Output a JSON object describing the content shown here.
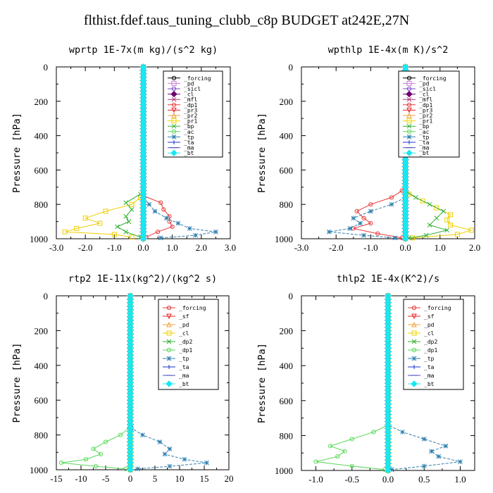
{
  "title": "flthist.fdef.taus_tuning_clubb_c8p  BUDGET at242E,27N",
  "ylabel": "Pressure [hPa]",
  "chart_data": [
    {
      "id": "wprtp",
      "type": "line",
      "title": "wprtp  1E-7x(m kg)/(s^2 kg)",
      "ylabel": "Pressure [hPa]",
      "xlim": [
        -3.0,
        3.0
      ],
      "ylim": [
        1000,
        0
      ],
      "xticks": [
        "-3.0",
        "-2.0",
        "-1.0",
        "0.0",
        "1.0",
        "2.0",
        "3.0"
      ],
      "yticks": [
        "0",
        "200",
        "400",
        "600",
        "800",
        "1000"
      ],
      "legend": "top-right",
      "series": [
        {
          "name": "_forcing",
          "color": "#000000",
          "marker": "o"
        },
        {
          "name": "_pd",
          "color": "#c878d8",
          "marker": "s"
        },
        {
          "name": "_sicl",
          "color": "#7848c8",
          "marker": "o"
        },
        {
          "name": "_cl",
          "color": "#700070",
          "marker": "d"
        },
        {
          "name": "_mfl",
          "color": "#a83878",
          "marker": "x"
        },
        {
          "name": "_dp1",
          "color": "#e83838",
          "marker": "o",
          "y": [
            750,
            790,
            830,
            870,
            900,
            930,
            960,
            990
          ],
          "x": [
            0.0,
            0.6,
            0.7,
            0.9,
            0.9,
            1.0,
            0.5,
            0.1
          ]
        },
        {
          "name": "_pr3",
          "color": "#e82020",
          "marker": "v"
        },
        {
          "name": "_pr2",
          "color": "#f0a040",
          "marker": "^"
        },
        {
          "name": "_pr1",
          "color": "#f0d000",
          "marker": "s",
          "y": [
            760,
            800,
            840,
            880,
            910,
            940,
            960,
            975,
            990
          ],
          "x": [
            -0.1,
            -0.4,
            -1.3,
            -2.0,
            -1.5,
            -2.3,
            -2.7,
            -1.0,
            -0.4
          ]
        },
        {
          "name": "_bp",
          "color": "#30b030",
          "marker": "x",
          "y": [
            740,
            790,
            830,
            870,
            900,
            930,
            960,
            990
          ],
          "x": [
            -0.1,
            -0.6,
            -0.4,
            -0.6,
            -0.5,
            -0.9,
            -0.6,
            -0.1
          ]
        },
        {
          "name": "_ac",
          "color": "#58d858",
          "marker": "o"
        },
        {
          "name": "_tp",
          "color": "#3080b0",
          "marker": "*",
          "y": [
            760,
            800,
            840,
            880,
            910,
            940,
            960,
            980,
            995
          ],
          "x": [
            0.0,
            0.2,
            0.4,
            0.8,
            1.2,
            1.6,
            2.5,
            1.8,
            0.6
          ]
        },
        {
          "name": "_ta",
          "color": "#1830d0",
          "marker": "+"
        },
        {
          "name": "_ma",
          "color": "#5050c0",
          "marker": "-"
        },
        {
          "name": "_bt",
          "color": "#18e8f0",
          "marker": "d"
        }
      ]
    },
    {
      "id": "wpthlp",
      "type": "line",
      "title": "wpthlp  1E-4x(m K)/s^2",
      "ylabel": "Pressure [hPa]",
      "xlim": [
        -3.0,
        2.0
      ],
      "ylim": [
        1000,
        0
      ],
      "xticks": [
        "-3.0",
        "-2.0",
        "-1.0",
        "0.0",
        "1.0",
        "2.0"
      ],
      "yticks": [
        "0",
        "200",
        "400",
        "600",
        "800",
        "1000"
      ],
      "legend": "top-right",
      "series": [
        {
          "name": "_forcing",
          "color": "#000000",
          "marker": "o"
        },
        {
          "name": "_pd",
          "color": "#c878d8",
          "marker": "s"
        },
        {
          "name": "_sicl",
          "color": "#7848c8",
          "marker": "o"
        },
        {
          "name": "_cl",
          "color": "#700070",
          "marker": "d"
        },
        {
          "name": "_mfl",
          "color": "#a83878",
          "marker": "x"
        },
        {
          "name": "_dp1",
          "color": "#e83838",
          "marker": "o",
          "y": [
            720,
            760,
            800,
            840,
            880,
            910,
            940,
            970,
            995
          ],
          "x": [
            -0.1,
            -0.4,
            -1.0,
            -1.4,
            -1.2,
            -1.0,
            -1.5,
            -0.8,
            -0.1
          ]
        },
        {
          "name": "_pr3",
          "color": "#e82020",
          "marker": "v"
        },
        {
          "name": "_pr2",
          "color": "#f0a040",
          "marker": "^"
        },
        {
          "name": "_pr1",
          "color": "#f0d000",
          "marker": "s",
          "y": [
            740,
            780,
            820,
            860,
            890,
            920,
            950,
            975,
            995
          ],
          "x": [
            0.1,
            0.5,
            0.9,
            1.3,
            1.2,
            1.3,
            1.9,
            1.5,
            0.2
          ]
        },
        {
          "name": "_bp",
          "color": "#30b030",
          "marker": "x",
          "y": [
            720,
            760,
            800,
            840,
            880,
            920,
            950,
            980,
            995
          ],
          "x": [
            0.0,
            0.3,
            0.7,
            1.1,
            0.9,
            0.7,
            1.2,
            0.6,
            0.1
          ]
        },
        {
          "name": "_ac",
          "color": "#58d858",
          "marker": "o"
        },
        {
          "name": "_tp",
          "color": "#3080b0",
          "marker": "*",
          "y": [
            760,
            800,
            840,
            880,
            910,
            940,
            960,
            980,
            995
          ],
          "x": [
            0.0,
            -0.4,
            -1.0,
            -1.5,
            -1.3,
            -1.6,
            -2.2,
            -1.2,
            -0.3
          ]
        },
        {
          "name": "_ta",
          "color": "#1830d0",
          "marker": "+"
        },
        {
          "name": "_ma",
          "color": "#5050c0",
          "marker": "-"
        },
        {
          "name": "_bt",
          "color": "#18e8f0",
          "marker": "d"
        }
      ]
    },
    {
      "id": "rtp2",
      "type": "line",
      "title": "rtp2  1E-11x(kg^2)/(kg^2 s)",
      "ylabel": "Pressure [hPa]",
      "xlim": [
        -15,
        20
      ],
      "ylim": [
        1000,
        0
      ],
      "xticks": [
        "-15",
        "-10",
        "-5",
        "0",
        "5",
        "10",
        "15",
        "20"
      ],
      "yticks": [
        "0",
        "200",
        "400",
        "600",
        "800",
        "1000"
      ],
      "legend": "top-right",
      "series": [
        {
          "name": "_forcing",
          "color": "#e83838",
          "marker": "o"
        },
        {
          "name": "_sf",
          "color": "#e82020",
          "marker": "v"
        },
        {
          "name": "_pd",
          "color": "#f0a040",
          "marker": "^"
        },
        {
          "name": "_cl",
          "color": "#f0d000",
          "marker": "s"
        },
        {
          "name": "_dp2",
          "color": "#30b030",
          "marker": "x"
        },
        {
          "name": "_dp1",
          "color": "#58d858",
          "marker": "o",
          "y": [
            760,
            800,
            840,
            880,
            910,
            940,
            960,
            980,
            995
          ],
          "x": [
            -0.2,
            -2.0,
            -5.0,
            -7.5,
            -6.0,
            -9.0,
            -14.0,
            -7.0,
            -1.0
          ]
        },
        {
          "name": "_tp",
          "color": "#3080b0",
          "marker": "*",
          "y": [
            760,
            800,
            840,
            880,
            910,
            940,
            960,
            980,
            995
          ],
          "x": [
            0.2,
            2.5,
            6.0,
            8.0,
            7.0,
            11.0,
            15.5,
            8.0,
            1.5
          ]
        },
        {
          "name": "_ta",
          "color": "#1830d0",
          "marker": "+"
        },
        {
          "name": "_ma",
          "color": "#5050c0",
          "marker": "-"
        },
        {
          "name": "_bt",
          "color": "#18e8f0",
          "marker": "d"
        }
      ]
    },
    {
      "id": "thlp2",
      "type": "line",
      "title": "thlp2  1E-4x(K^2)/s",
      "ylabel": "Pressure [hPa]",
      "xlim": [
        -1.2,
        1.2
      ],
      "ylim": [
        1000,
        0
      ],
      "xticks": [
        "-1.0",
        "-0.5",
        "0.0",
        "0.5",
        "1.0"
      ],
      "yticks": [
        "0",
        "200",
        "400",
        "600",
        "800",
        "1000"
      ],
      "legend": "top-right",
      "series": [
        {
          "name": "_forcing",
          "color": "#e83838",
          "marker": "o"
        },
        {
          "name": "_sf",
          "color": "#e82020",
          "marker": "v"
        },
        {
          "name": "_pd",
          "color": "#f0a040",
          "marker": "^"
        },
        {
          "name": "_cl",
          "color": "#f0d000",
          "marker": "s"
        },
        {
          "name": "_dp2",
          "color": "#30b030",
          "marker": "x"
        },
        {
          "name": "_dp1",
          "color": "#58d858",
          "marker": "o",
          "y": [
            740,
            780,
            820,
            860,
            890,
            920,
            950,
            975,
            995
          ],
          "x": [
            0.0,
            -0.2,
            -0.5,
            -0.8,
            -0.6,
            -0.7,
            -1.0,
            -0.5,
            -0.05
          ]
        },
        {
          "name": "_tp",
          "color": "#3080b0",
          "marker": "*",
          "y": [
            740,
            780,
            820,
            860,
            890,
            920,
            950,
            975,
            995
          ],
          "x": [
            0.0,
            0.2,
            0.5,
            0.8,
            0.6,
            0.7,
            1.0,
            0.5,
            0.05
          ]
        },
        {
          "name": "_ta",
          "color": "#1830d0",
          "marker": "+"
        },
        {
          "name": "_ma",
          "color": "#5050c0",
          "marker": "-"
        },
        {
          "name": "_bt",
          "color": "#18e8f0",
          "marker": "d"
        }
      ]
    }
  ]
}
